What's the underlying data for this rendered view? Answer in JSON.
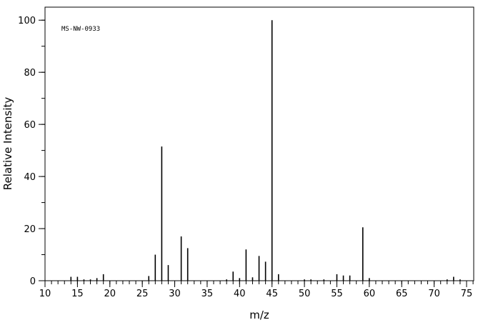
{
  "chart_data": {
    "type": "stem",
    "title": "MS-NW-0933",
    "xlabel": "m/z",
    "ylabel": "Relative Intensity",
    "x": [
      14,
      15,
      16,
      17,
      18,
      19,
      26,
      27,
      28,
      29,
      31,
      32,
      38,
      39,
      40,
      41,
      42,
      43,
      44,
      45,
      46,
      50,
      51,
      53,
      55,
      56,
      57,
      59,
      60,
      72,
      73,
      74
    ],
    "values": [
      1.5,
      1.5,
      0.5,
      0.5,
      1,
      2.5,
      1.8,
      10,
      51.5,
      6,
      17,
      12.5,
      0.5,
      3.5,
      1,
      12,
      1.3,
      9.5,
      7.3,
      100,
      2.5,
      0.5,
      0.5,
      0.5,
      2.5,
      2,
      2,
      20.5,
      1,
      0.5,
      1.5,
      0.5
    ],
    "color": "#000000",
    "xlim": [
      10,
      76.1
    ],
    "ylim": [
      0,
      105
    ],
    "xticks": [
      10,
      15,
      20,
      25,
      30,
      35,
      40,
      45,
      50,
      55,
      60,
      65,
      70,
      75
    ],
    "yticks": [
      0,
      20,
      40,
      60,
      80,
      100
    ],
    "xminor": 1,
    "yminor": 10
  }
}
